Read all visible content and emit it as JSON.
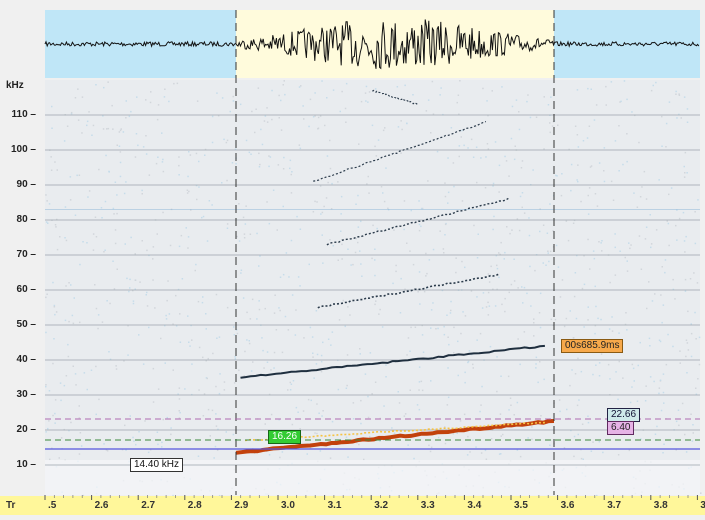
{
  "spectrogram": {
    "y_unit": "kHz",
    "x_axis_label": "Tr",
    "y_ticks": [
      "10",
      "20",
      "30",
      "40",
      "50",
      "60",
      "70",
      "80",
      "90",
      "100",
      "110"
    ],
    "x_ticks": [
      ".5",
      "2.6",
      "2.7",
      "2.8",
      "2.9",
      "3.0",
      "3.1",
      "3.2",
      "3.3",
      "3.4",
      "3.5",
      "3.6",
      "3.7",
      "3.8",
      "3."
    ],
    "selection": {
      "start_s": 2.9,
      "end_s": 3.6
    },
    "duration_label": "00s685.9ms",
    "freq_markers": {
      "upper": "22.66",
      "band": "6.40",
      "lower": "16.26",
      "cursor": "14.40 kHz"
    },
    "colors": {
      "selection_bg": "#fffbdc",
      "unselected_bg": "#bfe6f7",
      "axis_strip": "#fff79a",
      "call": "#e88a1d",
      "duration_box": "#f7a94b",
      "upper_box": "#cfeaea",
      "band_box": "#e6b3e6",
      "lower_box": "#33cc33"
    }
  }
}
